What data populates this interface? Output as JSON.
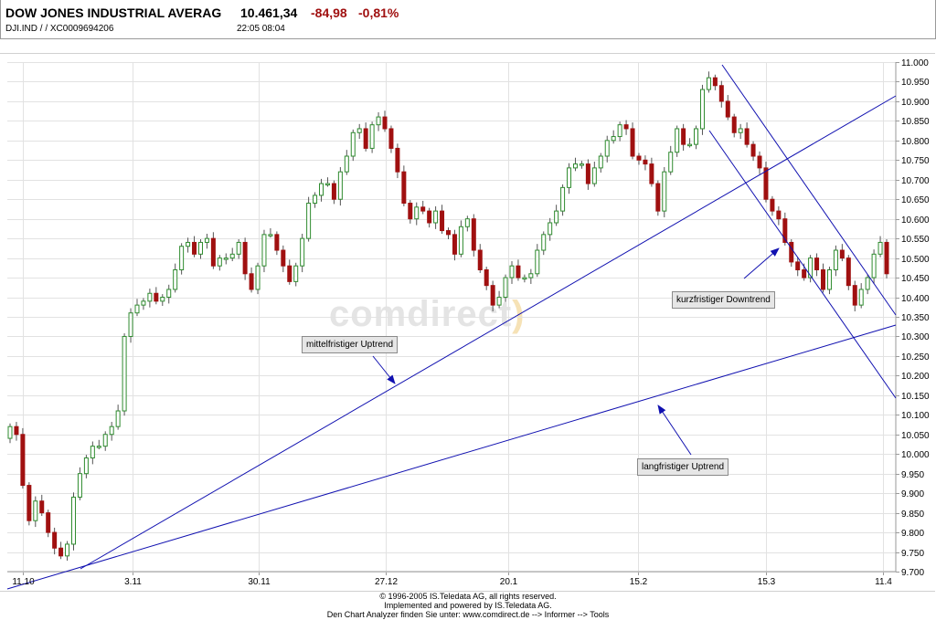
{
  "header": {
    "name": "DOW JONES INDUSTRIAL AVERAG",
    "price": "10.461,34",
    "change": "-84,98",
    "change_pct": "-0,81%",
    "symbol_line": "DJI.IND  /    /  XC0009694206",
    "time_line": "22:05   08:04"
  },
  "watermark": {
    "text": "comdirect",
    "paren": ")"
  },
  "chart_data": {
    "type": "candlestick",
    "title": "DOW JONES INDUSTRIAL AVERAG",
    "x_tick_labels": [
      "11.10",
      "3.11",
      "30.11",
      "27.12",
      "20.1",
      "15.2",
      "15.3",
      "11.4"
    ],
    "y_tick_labels": [
      "11.000",
      "10.950",
      "10.900",
      "10.850",
      "10.800",
      "10.750",
      "10.700",
      "10.650",
      "10.600",
      "10.550",
      "10.500",
      "10.450",
      "10.400",
      "10.350",
      "10.300",
      "10.250",
      "10.200",
      "10.150",
      "10.100",
      "10.050",
      "10.000",
      "9.950",
      "9.900",
      "9.850",
      "9.800",
      "9.750",
      "9.700"
    ],
    "ylim": [
      9700,
      11000
    ],
    "axis_position": "right",
    "grid": true,
    "up_color": "#2e8b2e",
    "down_color": "#a01010",
    "trend_line_color": "#1010b0",
    "candles_close": [
      10070,
      10050,
      9920,
      9830,
      9880,
      9850,
      9800,
      9760,
      9740,
      9770,
      9890,
      9950,
      9990,
      10020,
      10020,
      10050,
      10070,
      10110,
      10300,
      10360,
      10380,
      10390,
      10410,
      10390,
      10400,
      10420,
      10470,
      10530,
      10540,
      10510,
      10540,
      10550,
      10480,
      10500,
      10500,
      10510,
      10540,
      10460,
      10420,
      10480,
      10560,
      10560,
      10520,
      10480,
      10440,
      10480,
      10550,
      10640,
      10660,
      10690,
      10690,
      10650,
      10720,
      10760,
      10820,
      10830,
      10780,
      10840,
      10860,
      10830,
      10780,
      10720,
      10640,
      10600,
      10630,
      10620,
      10590,
      10620,
      10570,
      10560,
      10510,
      10580,
      10600,
      10520,
      10470,
      10430,
      10380,
      10400,
      10450,
      10480,
      10450,
      10450,
      10460,
      10520,
      10560,
      10590,
      10620,
      10680,
      10730,
      10740,
      10740,
      10690,
      10730,
      10760,
      10800,
      10810,
      10840,
      10830,
      10760,
      10750,
      10740,
      10690,
      10620,
      10720,
      10770,
      10830,
      10790,
      10790,
      10830,
      10930,
      10960,
      10940,
      10900,
      10860,
      10820,
      10830,
      10790,
      10760,
      10730,
      10650,
      10620,
      10600,
      10540,
      10490,
      10470,
      10450,
      10500,
      10470,
      10420,
      10470,
      10520,
      10500,
      10430,
      10380,
      10420,
      10450,
      10510,
      10540,
      10460
    ]
  },
  "annotations": [
    {
      "text": "kurzfristiger Downtrend"
    },
    {
      "text": "mittelfristiger Uptrend"
    },
    {
      "text": "langfristiger Uptrend"
    }
  ],
  "footer": {
    "line1": "© 1996-2005 IS.Teledata AG, all rights reserved.",
    "line2": "Implemented and powered by IS.Teledata AG.",
    "line3": "Den Chart Analyzer finden Sie unter: www.comdirect.de --> Informer --> Tools"
  }
}
